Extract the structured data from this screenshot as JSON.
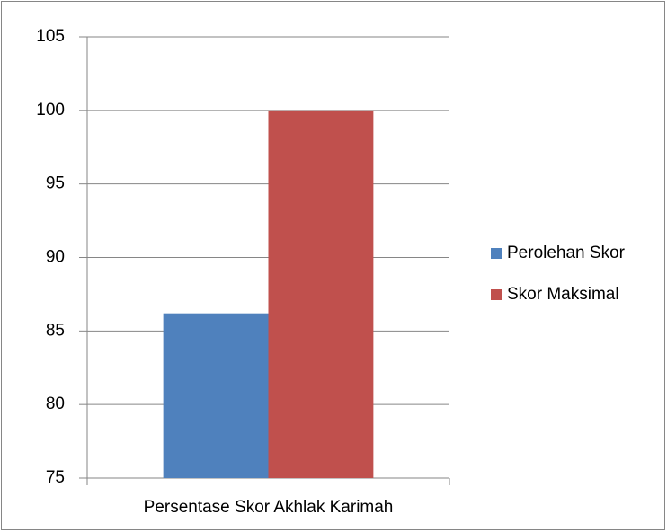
{
  "chart_data": {
    "type": "bar",
    "categories": [
      "Persentase Skor Akhlak Karimah"
    ],
    "series": [
      {
        "name": "Perolehan Skor",
        "color": "#4f81bd",
        "values": [
          86.2
        ]
      },
      {
        "name": "Skor Maksimal",
        "color": "#c0504d",
        "values": [
          100
        ]
      }
    ],
    "ylim": [
      75,
      105
    ],
    "yticks": [
      75,
      80,
      85,
      90,
      95,
      100,
      105
    ],
    "grid": true,
    "legend": "right"
  }
}
